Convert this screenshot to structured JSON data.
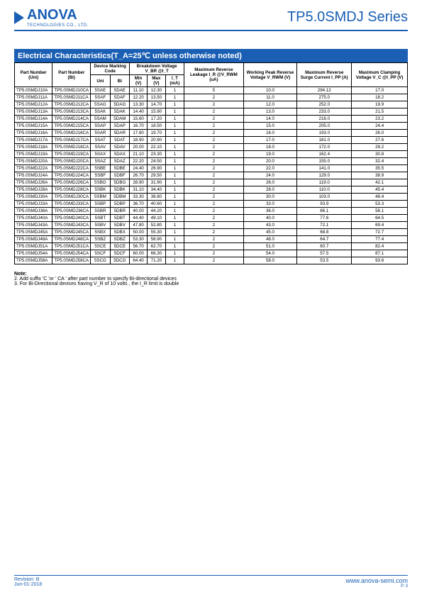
{
  "header": {
    "logo_main": "ANOVA",
    "logo_sub": "TECHNOLOGIES CO., LTD.",
    "series": "TP5.0SMDJ Series"
  },
  "section_title": "Electrical Characteristics(T_A=25℃ unless otherwise noted)",
  "table": {
    "headers": {
      "part_uni": "Part Number (Uni)",
      "part_bi": "Part Number (Bi)",
      "device_marking": "Device Marking Code",
      "uni": "Uni",
      "bi": "Bi",
      "breakdown": "Breakdown Voltage V_BR @I_T",
      "min_v": "Min (V)",
      "max_v": "Max (V)",
      "it_ma": "I_T (mA)",
      "max_leak": "Maximum Reverse Leakage I_R @V_RWM (uA)",
      "work_peak": "Working Peak Reverse Voltage V_RWM (V)",
      "max_surge": "Maximum Reverse Surge Current I_PP (A)",
      "max_clamp": "Maximum Clamping Voltage V_C @I_PP (V)"
    },
    "rows": [
      [
        "TP5.0SMDJ10A",
        "TP5.0SMDJ10CA",
        "5SAE",
        "5DAE",
        "11.10",
        "12.30",
        "1",
        "5",
        "10.0",
        "294.12",
        "17.0"
      ],
      [
        "TP5.0SMDJ11A",
        "TP5.0SMDJ11CA",
        "5SAF",
        "5DAF",
        "12.20",
        "13.50",
        "1",
        "2",
        "11.0",
        "275.0",
        "18.2"
      ],
      [
        "TP5.0SMDJ12A",
        "TP5.0SMDJ12CA",
        "5SAG",
        "5DAG",
        "13.30",
        "14.70",
        "1",
        "2",
        "12.0",
        "252.0",
        "19.9"
      ],
      [
        "TP5.0SMDJ13A",
        "TP5.0SMDJ13CA",
        "5SAK",
        "5DAK",
        "14.40",
        "15.90",
        "1",
        "2",
        "13.0",
        "233.0",
        "21.5"
      ],
      [
        "TP5.0SMDJ14A",
        "TP5.0SMDJ14CA",
        "5SAM",
        "5DAM",
        "15.60",
        "17.20",
        "1",
        "2",
        "14.0",
        "216.0",
        "23.2"
      ],
      [
        "TP5.0SMDJ15A",
        "TP5.0SMDJ15CA",
        "5SAP",
        "5DAP",
        "16.70",
        "18.50",
        "1",
        "2",
        "15.0",
        "205.0",
        "24.4"
      ],
      [
        "TP5.0SMDJ16A",
        "TP5.0SMDJ16CA",
        "5SAR",
        "5DAR",
        "17.80",
        "19.70",
        "1",
        "2",
        "16.0",
        "193.0",
        "26.0"
      ],
      [
        "TP5.0SMDJ17A",
        "TP5.0SMDJ17CA",
        "5SAT",
        "5DAT",
        "18.90",
        "20.90",
        "1",
        "2",
        "17.0",
        "181.0",
        "27.6"
      ],
      [
        "TP5.0SMDJ18A",
        "TP5.0SMDJ18CA",
        "5SAV",
        "5DAV",
        "20.00",
        "22.10",
        "1",
        "2",
        "18.0",
        "172.0",
        "29.2"
      ],
      [
        "TP5.0SMDJ19A",
        "TP5.0SMDJ19CA",
        "5SAX",
        "5DAX",
        "21.10",
        "23.30",
        "1",
        "2",
        "19.0",
        "162.4",
        "30.8"
      ],
      [
        "TP5.0SMDJ20A",
        "TP5.0SMDJ20CA",
        "5SAZ",
        "5DAZ",
        "22.20",
        "24.50",
        "1",
        "2",
        "20.0",
        "155.0",
        "32.4"
      ],
      [
        "TP5.0SMDJ22A",
        "TP5.0SMDJ22CA",
        "5SBE",
        "5DBE",
        "24.40",
        "26.90",
        "1",
        "2",
        "22.0",
        "141.0",
        "35.5"
      ],
      [
        "TP5.0SMDJ24A",
        "TP5.0SMDJ24CA",
        "5SBF",
        "5DBF",
        "26.70",
        "29.50",
        "1",
        "2",
        "24.0",
        "129.0",
        "38.9"
      ],
      [
        "TP5.0SMDJ26A",
        "TP5.0SMDJ26CA",
        "5SBG",
        "5DBG",
        "28.90",
        "31.90",
        "1",
        "2",
        "26.0",
        "119.0",
        "42.1"
      ],
      [
        "TP5.0SMDJ28A",
        "TP5.0SMDJ28CA",
        "5SBK",
        "5DBK",
        "31.10",
        "34.40",
        "1",
        "2",
        "28.0",
        "110.0",
        "45.4"
      ],
      [
        "TP5.0SMDJ30A",
        "TP5.0SMDJ30CA",
        "5SBM",
        "5DBM",
        "33.30",
        "36.80",
        "1",
        "2",
        "30.0",
        "103.0",
        "48.4"
      ],
      [
        "TP5.0SMDJ33A",
        "TP5.0SMDJ33CA",
        "5SBP",
        "5DBP",
        "36.70",
        "40.60",
        "1",
        "2",
        "33.0",
        "93.9",
        "53.3"
      ],
      [
        "TP5.0SMDJ36A",
        "TP5.0SMDJ36CA",
        "5SBR",
        "5DBR",
        "40.00",
        "44.20",
        "1",
        "2",
        "36.0",
        "86.1",
        "58.1"
      ],
      [
        "TP5.0SMDJ40A",
        "TP5.0SMDJ40CA",
        "5SBT",
        "5DBT",
        "44.40",
        "49.10",
        "1",
        "2",
        "40.0",
        "77.6",
        "64.5"
      ],
      [
        "TP5.0SMDJ43A",
        "TP5.0SMDJ43CA",
        "5SBV",
        "5DBV",
        "47.80",
        "52.80",
        "1",
        "2",
        "43.0",
        "72.1",
        "69.4"
      ],
      [
        "TP5.0SMDJ45A",
        "TP5.0SMDJ45CA",
        "5SBX",
        "5DBX",
        "50.00",
        "55.30",
        "1",
        "2",
        "45.0",
        "68.8",
        "72.7"
      ],
      [
        "TP5.0SMDJ48A",
        "TP5.0SMDJ48CA",
        "5SBZ",
        "5DBZ",
        "53.30",
        "58.90",
        "1",
        "2",
        "48.0",
        "64.7",
        "77.4"
      ],
      [
        "TP5.0SMDJ51A",
        "TP5.0SMDJ51CA",
        "5SCE",
        "5DCE",
        "56.70",
        "62.70",
        "1",
        "2",
        "51.0",
        "60.7",
        "82.4"
      ],
      [
        "TP5.0SMDJ54A",
        "TP5.0SMDJ54CA",
        "5SCF",
        "5DCF",
        "60.00",
        "66.30",
        "1",
        "2",
        "54.0",
        "57.5",
        "87.1"
      ],
      [
        "TP5.0SMDJ58A",
        "TP5.0SMDJ58CA",
        "5SCG",
        "5DCG",
        "64.40",
        "71.20",
        "1",
        "2",
        "58.0",
        "53.5",
        "93.6"
      ]
    ]
  },
  "notes": {
    "title": "Note:",
    "n2": "2. Add suffix 'C 'or ' CA ' after part number to specify Bi-directional devices",
    "n3": "3. For Bi-Directional devices having V_R of 10 volts , the I_R limit is double"
  },
  "footer": {
    "revision": "Revision: B",
    "date": "Jun-01-2018",
    "url": "www.anova-semi.com",
    "page": "P. 3"
  }
}
